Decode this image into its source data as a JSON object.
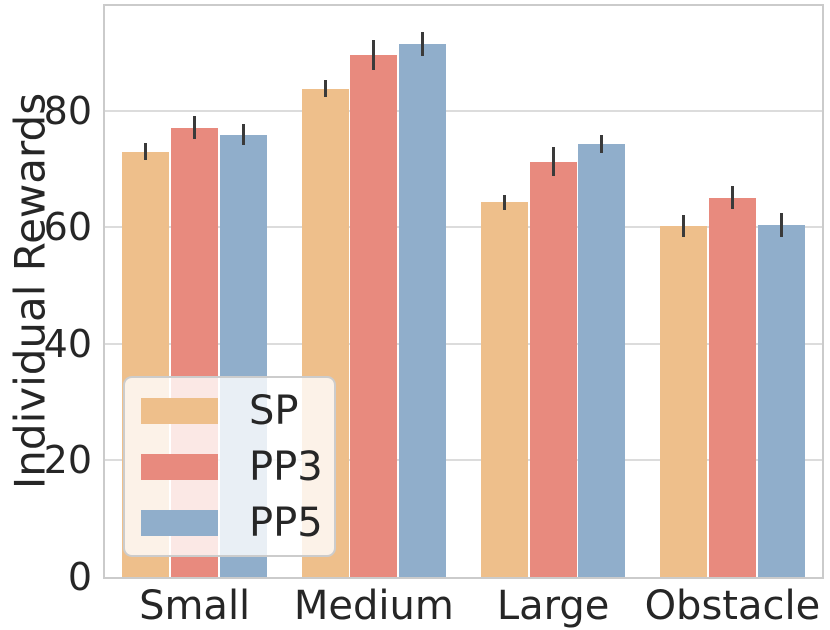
{
  "chart_data": {
    "type": "bar",
    "title": "",
    "xlabel": "",
    "ylabel": "Individual Rewards",
    "categories": [
      "Small",
      "Medium",
      "Large",
      "Obstacle"
    ],
    "series": [
      {
        "name": "SP",
        "color": "#eebf8b",
        "values": [
          73.0,
          83.8,
          64.3,
          60.3
        ],
        "errors": [
          1.5,
          1.5,
          1.3,
          1.9
        ]
      },
      {
        "name": "PP3",
        "color": "#e88a7e",
        "values": [
          77.1,
          89.6,
          71.3,
          65.1
        ],
        "errors": [
          2.0,
          2.6,
          2.5,
          2.0
        ]
      },
      {
        "name": "PP5",
        "color": "#90aecb",
        "values": [
          75.9,
          91.5,
          74.3,
          60.4
        ],
        "errors": [
          1.8,
          2.1,
          1.6,
          2.1
        ]
      }
    ],
    "yticks": [
      0,
      20,
      40,
      60,
      80
    ],
    "ylim": [
      0,
      98
    ],
    "grid": true,
    "legend_position": "lower left",
    "error_bar_color": "#3a3a3a",
    "grid_color": "#dcdcdc",
    "spine_color": "#cbcbcb",
    "text_color": "#262626"
  }
}
